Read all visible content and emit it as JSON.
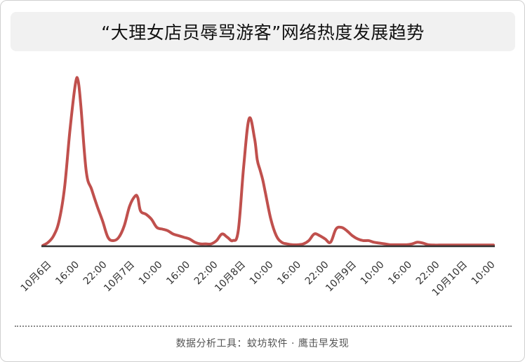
{
  "title": "“大理女店员辱骂游客”网络热度发展趋势",
  "footer": "数据分析工具：蚊坊软件 · 鹰击早发现",
  "colors": {
    "line": "#c0504d",
    "axis": "#333333",
    "title_bg": "#f1f1f1"
  },
  "chart_data": {
    "type": "line",
    "title": "“大理女店员辱骂游客”网络热度发展趋势",
    "xlabel": "",
    "ylabel": "",
    "y_axis_visible": false,
    "grid": false,
    "ylim": [
      0,
      100
    ],
    "tick_labels": [
      "10月6日",
      "16:00",
      "22:00",
      "10月7日",
      "10:00",
      "16:00",
      "22:00",
      "10月8日",
      "10:00",
      "16:00",
      "22:00",
      "10月9日",
      "10:00",
      "16:00",
      "22:00",
      "10月10日",
      "10:00"
    ],
    "series": [
      {
        "name": "",
        "x": [
          0,
          2,
          4,
          6,
          8,
          10,
          12,
          13,
          14,
          16,
          18,
          20,
          22,
          24,
          26,
          28,
          30,
          32,
          34,
          35,
          36,
          38,
          40,
          42,
          44,
          46,
          48,
          50,
          52,
          54,
          56,
          58,
          60,
          62,
          64,
          66,
          68,
          70,
          72,
          74,
          76,
          78,
          79,
          80,
          81,
          82,
          84,
          86,
          88,
          90,
          92,
          94,
          96,
          98,
          100,
          102,
          104,
          106,
          108,
          110,
          112,
          114,
          116,
          118,
          120,
          122,
          124,
          126,
          128,
          130,
          132,
          134,
          136,
          138,
          140,
          142,
          144,
          146,
          148,
          150,
          152,
          154,
          156,
          158,
          160,
          162,
          164,
          166
        ],
        "y": [
          0,
          2,
          6,
          15,
          35,
          70,
          98,
          100,
          85,
          45,
          34,
          24,
          15,
          5,
          3,
          5,
          12,
          24,
          30,
          29,
          21,
          19,
          16,
          11,
          10,
          9,
          7,
          6,
          5,
          4,
          2,
          1,
          1,
          1,
          3,
          7,
          5,
          3,
          9,
          48,
          77,
          65,
          52,
          46,
          40,
          32,
          16,
          6,
          2,
          1,
          0.5,
          0.5,
          1,
          3,
          7,
          6,
          4,
          2,
          10,
          11,
          9,
          6,
          4,
          3,
          3,
          2,
          1.5,
          1,
          0.5,
          0.5,
          0.5,
          0.5,
          1,
          2,
          1.5,
          0.5,
          0.3,
          0.3,
          0.3,
          0.3,
          0.3,
          0.3,
          0.3,
          0.3,
          0.3,
          0.3,
          0.3,
          0.3
        ]
      }
    ]
  }
}
